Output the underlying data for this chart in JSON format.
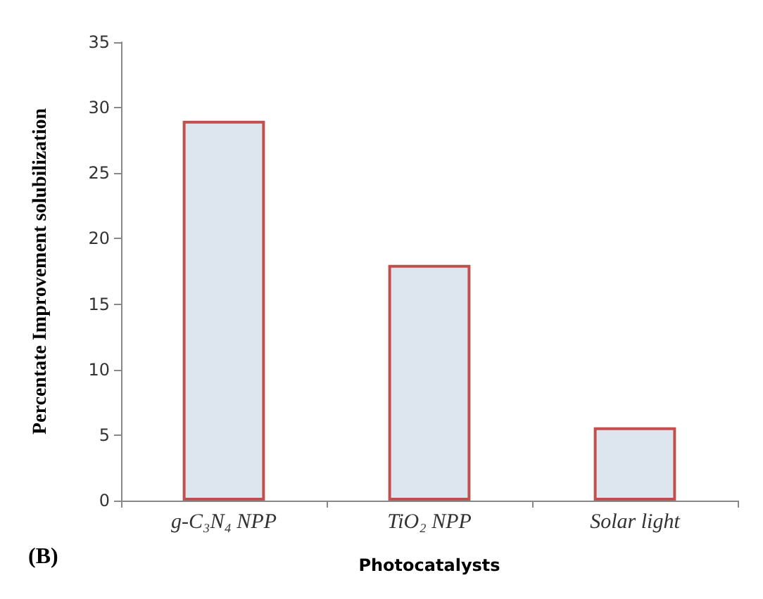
{
  "chart_data": {
    "type": "bar",
    "xlabel": "Photocatalysts",
    "ylabel": "Percentate Improvement solubilization",
    "categories": [
      "g-C₃N₄ NPP",
      "TiO₂ NPP",
      "Solar light"
    ],
    "values": [
      29,
      18,
      5.6
    ],
    "color": "#dde5ee",
    "ylim": [
      0,
      35
    ],
    "yticks": [
      0,
      5,
      10,
      15,
      20,
      25,
      30,
      35
    ],
    "annotations": [
      "(B)"
    ]
  }
}
